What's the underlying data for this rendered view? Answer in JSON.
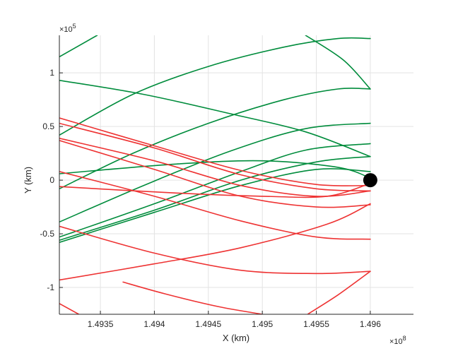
{
  "chart_data": {
    "type": "line",
    "title": "",
    "xlabel": "X (km)",
    "ylabel": "Y (km)",
    "x_exponent_label": "×10",
    "x_exponent_power": "8",
    "y_exponent_label": "×10",
    "y_exponent_power": "5",
    "xlim": [
      149312000,
      149640000
    ],
    "ylim": [
      -125000,
      135000
    ],
    "grid": true,
    "x_ticks": [
      {
        "value": 149350000,
        "label": "1.4935"
      },
      {
        "value": 149400000,
        "label": "1.494"
      },
      {
        "value": 149450000,
        "label": "1.4945"
      },
      {
        "value": 149500000,
        "label": "1.495"
      },
      {
        "value": 149550000,
        "label": "1.4955"
      },
      {
        "value": 149600000,
        "label": "1.496"
      }
    ],
    "y_ticks": [
      {
        "value": -100000,
        "label": "-1"
      },
      {
        "value": -50000,
        "label": "-0.5"
      },
      {
        "value": 0,
        "label": "0"
      },
      {
        "value": 50000,
        "label": "0.5"
      },
      {
        "value": 100000,
        "label": "1"
      }
    ],
    "colors": {
      "green": "#008c3c",
      "red": "#ee3333",
      "marker": "#000000",
      "grid": "#e3e3e3",
      "axis": "#262626"
    },
    "marker": {
      "x": 149600000,
      "y": 0
    },
    "series": [
      {
        "color": "green",
        "points": [
          [
            149312000,
            115000
          ],
          [
            149347000,
            135000
          ]
        ]
      },
      {
        "color": "green",
        "points": [
          [
            149312000,
            93000
          ],
          [
            149390000,
            80000
          ],
          [
            149470000,
            62000
          ],
          [
            149540000,
            45000
          ],
          [
            149600000,
            22000
          ]
        ]
      },
      {
        "color": "green",
        "points": [
          [
            149312000,
            42000
          ],
          [
            149380000,
            80000
          ],
          [
            149450000,
            106000
          ],
          [
            149520000,
            124000
          ],
          [
            149570000,
            132000
          ],
          [
            149600000,
            132000
          ]
        ]
      },
      {
        "color": "green",
        "points": [
          [
            149540000,
            135000
          ],
          [
            149575000,
            112000
          ],
          [
            149600000,
            85000
          ]
        ]
      },
      {
        "color": "green",
        "points": [
          [
            149312000,
            -8000
          ],
          [
            149380000,
            25000
          ],
          [
            149450000,
            53000
          ],
          [
            149520000,
            75000
          ],
          [
            149570000,
            85000
          ],
          [
            149600000,
            85000
          ]
        ]
      },
      {
        "color": "green",
        "points": [
          [
            149312000,
            -39000
          ],
          [
            149390000,
            -5000
          ],
          [
            149470000,
            27000
          ],
          [
            149540000,
            48000
          ],
          [
            149600000,
            53000
          ]
        ]
      },
      {
        "color": "green",
        "points": [
          [
            149312000,
            -53000
          ],
          [
            149400000,
            -22000
          ],
          [
            149480000,
            8000
          ],
          [
            149540000,
            28000
          ],
          [
            149600000,
            34000
          ]
        ]
      },
      {
        "color": "green",
        "points": [
          [
            149312000,
            -56000
          ],
          [
            149400000,
            -28000
          ],
          [
            149480000,
            0
          ],
          [
            149550000,
            17000
          ],
          [
            149600000,
            22000
          ]
        ]
      },
      {
        "color": "green",
        "points": [
          [
            149312000,
            -58000
          ],
          [
            149400000,
            -30000
          ],
          [
            149480000,
            -5000
          ],
          [
            149550000,
            10000
          ],
          [
            149600000,
            8000
          ]
        ]
      },
      {
        "color": "green",
        "points": [
          [
            149312000,
            6000
          ],
          [
            149420000,
            15000
          ],
          [
            149500000,
            18000
          ],
          [
            149570000,
            12000
          ],
          [
            149600000,
            2000
          ]
        ]
      },
      {
        "color": "red",
        "points": [
          [
            149312000,
            58000
          ],
          [
            149400000,
            32000
          ],
          [
            149480000,
            9000
          ],
          [
            149550000,
            -4000
          ],
          [
            149600000,
            -5000
          ]
        ]
      },
      {
        "color": "red",
        "points": [
          [
            149312000,
            53000
          ],
          [
            149400000,
            30000
          ],
          [
            149480000,
            5000
          ],
          [
            149550000,
            -8000
          ],
          [
            149600000,
            -10000
          ]
        ]
      },
      {
        "color": "red",
        "points": [
          [
            149312000,
            39000
          ],
          [
            149400000,
            18000
          ],
          [
            149480000,
            -5000
          ],
          [
            149550000,
            -15000
          ],
          [
            149600000,
            -10000
          ]
        ]
      },
      {
        "color": "red",
        "points": [
          [
            149312000,
            37000
          ],
          [
            149400000,
            10000
          ],
          [
            149480000,
            -15000
          ],
          [
            149550000,
            -25000
          ],
          [
            149600000,
            -23000
          ]
        ]
      },
      {
        "color": "red",
        "points": [
          [
            149312000,
            8000
          ],
          [
            149400000,
            -15000
          ],
          [
            149480000,
            -38000
          ],
          [
            149550000,
            -53000
          ],
          [
            149600000,
            -55000
          ]
        ]
      },
      {
        "color": "red",
        "points": [
          [
            149312000,
            -6000
          ],
          [
            149420000,
            -12000
          ],
          [
            149500000,
            -15000
          ],
          [
            149560000,
            -15000
          ],
          [
            149600000,
            -3000
          ]
        ]
      },
      {
        "color": "red",
        "points": [
          [
            149312000,
            -43000
          ],
          [
            149400000,
            -68000
          ],
          [
            149480000,
            -84000
          ],
          [
            149550000,
            -87000
          ],
          [
            149600000,
            -85000
          ]
        ]
      },
      {
        "color": "red",
        "points": [
          [
            149312000,
            -93000
          ],
          [
            149400000,
            -78000
          ],
          [
            149480000,
            -63000
          ],
          [
            149560000,
            -41000
          ],
          [
            149600000,
            -22000
          ]
        ]
      },
      {
        "color": "red",
        "points": [
          [
            149312000,
            -115000
          ],
          [
            149330000,
            -125000
          ]
        ]
      },
      {
        "color": "red",
        "points": [
          [
            149371000,
            -95000
          ],
          [
            149410000,
            -106000
          ],
          [
            149460000,
            -118000
          ],
          [
            149500000,
            -125000
          ]
        ]
      },
      {
        "color": "red",
        "points": [
          [
            149542000,
            -125000
          ],
          [
            149570000,
            -107000
          ],
          [
            149600000,
            -85000
          ]
        ]
      }
    ]
  }
}
